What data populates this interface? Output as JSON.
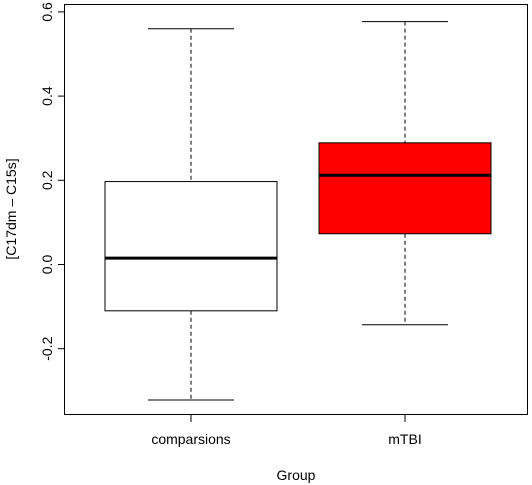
{
  "chart_data": {
    "type": "box",
    "xlabel": "Group",
    "ylabel": "[C17dm – C15s]",
    "ylim": [
      -0.36,
      0.62
    ],
    "yticks": [
      -0.2,
      0.0,
      0.2,
      0.4,
      0.6
    ],
    "ytick_labels": [
      "-0.2",
      "0.0",
      "0.2",
      "0.4",
      "0.6"
    ],
    "categories": [
      "comparsions",
      "mTBI"
    ],
    "boxes": [
      {
        "category": "comparsions",
        "min": -0.322,
        "q1": -0.11,
        "median": 0.015,
        "q3": 0.197,
        "max": 0.56,
        "fill": "#ffffff"
      },
      {
        "category": "mTBI",
        "min": -0.143,
        "q1": 0.073,
        "median": 0.212,
        "q3": 0.289,
        "max": 0.577,
        "fill": "#ff0000"
      }
    ]
  }
}
